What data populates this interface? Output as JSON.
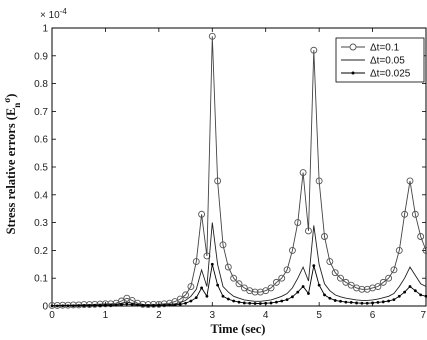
{
  "chart_data": {
    "type": "line",
    "xlabel": "Time (sec)",
    "ylabel": "Stress relative errors (E",
    "ylabel_sub": "n",
    "ylabel_sup": "σ",
    "ylabel_close": ")",
    "y_multiplier": "× 10",
    "y_multiplier_exp": "-4",
    "xlim": [
      0,
      7
    ],
    "ylim": [
      0,
      1
    ],
    "xticks": [
      "0",
      "1",
      "2",
      "3",
      "4",
      "5",
      "6",
      "7"
    ],
    "yticks": [
      "0",
      "0.1",
      "0.2",
      "0.3",
      "0.4",
      "0.5",
      "0.6",
      "0.7",
      "0.8",
      "0.9",
      "1"
    ],
    "grid": false,
    "legend_position": "top-right",
    "series": [
      {
        "name": "Δt=0.1",
        "marker": "circle",
        "x": [
          0.0,
          0.1,
          0.2,
          0.3,
          0.4,
          0.5,
          0.6,
          0.7,
          0.8,
          0.9,
          1.0,
          1.1,
          1.2,
          1.3,
          1.4,
          1.5,
          1.6,
          1.7,
          1.8,
          1.9,
          2.0,
          2.1,
          2.2,
          2.3,
          2.4,
          2.5,
          2.6,
          2.7,
          2.8,
          2.9,
          3.0,
          3.1,
          3.2,
          3.3,
          3.4,
          3.5,
          3.6,
          3.7,
          3.8,
          3.9,
          4.0,
          4.1,
          4.2,
          4.3,
          4.4,
          4.5,
          4.6,
          4.7,
          4.8,
          4.9,
          5.0,
          5.1,
          5.2,
          5.3,
          5.4,
          5.5,
          5.6,
          5.7,
          5.8,
          5.9,
          6.0,
          6.1,
          6.2,
          6.3,
          6.4,
          6.5,
          6.6,
          6.7,
          6.8,
          6.9,
          7.0
        ],
        "values": [
          0.002,
          0.002,
          0.003,
          0.003,
          0.004,
          0.004,
          0.005,
          0.005,
          0.006,
          0.007,
          0.008,
          0.008,
          0.01,
          0.018,
          0.028,
          0.02,
          0.01,
          0.006,
          0.005,
          0.006,
          0.006,
          0.008,
          0.01,
          0.016,
          0.025,
          0.04,
          0.07,
          0.16,
          0.33,
          0.18,
          0.97,
          0.45,
          0.22,
          0.14,
          0.1,
          0.08,
          0.065,
          0.055,
          0.05,
          0.05,
          0.055,
          0.065,
          0.085,
          0.1,
          0.13,
          0.2,
          0.3,
          0.48,
          0.27,
          0.92,
          0.45,
          0.25,
          0.16,
          0.12,
          0.1,
          0.085,
          0.075,
          0.065,
          0.06,
          0.06,
          0.065,
          0.07,
          0.085,
          0.1,
          0.13,
          0.2,
          0.33,
          0.45,
          0.33,
          0.25,
          0.2
        ]
      },
      {
        "name": "Δt=0.05",
        "marker": "none",
        "x": [
          0.0,
          0.1,
          0.2,
          0.3,
          0.4,
          0.5,
          0.6,
          0.7,
          0.8,
          0.9,
          1.0,
          1.1,
          1.2,
          1.3,
          1.4,
          1.5,
          1.6,
          1.7,
          1.8,
          1.9,
          2.0,
          2.1,
          2.2,
          2.3,
          2.4,
          2.5,
          2.6,
          2.7,
          2.8,
          2.9,
          3.0,
          3.1,
          3.2,
          3.3,
          3.4,
          3.5,
          3.6,
          3.7,
          3.8,
          3.9,
          4.0,
          4.1,
          4.2,
          4.3,
          4.4,
          4.5,
          4.6,
          4.7,
          4.8,
          4.9,
          5.0,
          5.1,
          5.2,
          5.3,
          5.4,
          5.5,
          5.6,
          5.7,
          5.8,
          5.9,
          6.0,
          6.1,
          6.2,
          6.3,
          6.4,
          6.5,
          6.6,
          6.7,
          6.8,
          6.9,
          7.0
        ],
        "values": [
          0.001,
          0.001,
          0.002,
          0.002,
          0.002,
          0.003,
          0.003,
          0.003,
          0.004,
          0.004,
          0.005,
          0.005,
          0.006,
          0.01,
          0.014,
          0.01,
          0.006,
          0.004,
          0.003,
          0.003,
          0.004,
          0.005,
          0.006,
          0.008,
          0.012,
          0.02,
          0.035,
          0.06,
          0.13,
          0.07,
          0.3,
          0.15,
          0.07,
          0.05,
          0.035,
          0.028,
          0.022,
          0.019,
          0.017,
          0.017,
          0.019,
          0.022,
          0.028,
          0.035,
          0.045,
          0.065,
          0.1,
          0.14,
          0.09,
          0.29,
          0.15,
          0.08,
          0.055,
          0.04,
          0.033,
          0.028,
          0.025,
          0.022,
          0.02,
          0.02,
          0.022,
          0.025,
          0.03,
          0.035,
          0.045,
          0.07,
          0.1,
          0.14,
          0.11,
          0.08,
          0.07
        ]
      },
      {
        "name": "Δt=0.025",
        "marker": "dot",
        "x": [
          0.0,
          0.1,
          0.2,
          0.3,
          0.4,
          0.5,
          0.6,
          0.7,
          0.8,
          0.9,
          1.0,
          1.1,
          1.2,
          1.3,
          1.4,
          1.5,
          1.6,
          1.7,
          1.8,
          1.9,
          2.0,
          2.1,
          2.2,
          2.3,
          2.4,
          2.5,
          2.6,
          2.7,
          2.8,
          2.9,
          3.0,
          3.1,
          3.2,
          3.3,
          3.4,
          3.5,
          3.6,
          3.7,
          3.8,
          3.9,
          4.0,
          4.1,
          4.2,
          4.3,
          4.4,
          4.5,
          4.6,
          4.7,
          4.8,
          4.9,
          5.0,
          5.1,
          5.2,
          5.3,
          5.4,
          5.5,
          5.6,
          5.7,
          5.8,
          5.9,
          6.0,
          6.1,
          6.2,
          6.3,
          6.4,
          6.5,
          6.6,
          6.7,
          6.8,
          6.9,
          7.0
        ],
        "values": [
          0.0005,
          0.0005,
          0.001,
          0.001,
          0.001,
          0.0015,
          0.0015,
          0.0015,
          0.002,
          0.002,
          0.0025,
          0.0025,
          0.003,
          0.005,
          0.007,
          0.005,
          0.003,
          0.002,
          0.0015,
          0.0015,
          0.002,
          0.0025,
          0.003,
          0.004,
          0.006,
          0.01,
          0.018,
          0.03,
          0.065,
          0.035,
          0.15,
          0.075,
          0.035,
          0.025,
          0.018,
          0.014,
          0.011,
          0.01,
          0.009,
          0.009,
          0.01,
          0.011,
          0.014,
          0.018,
          0.023,
          0.033,
          0.05,
          0.07,
          0.045,
          0.145,
          0.075,
          0.04,
          0.028,
          0.02,
          0.017,
          0.014,
          0.013,
          0.011,
          0.01,
          0.01,
          0.011,
          0.013,
          0.015,
          0.018,
          0.023,
          0.035,
          0.05,
          0.07,
          0.055,
          0.04,
          0.035
        ]
      }
    ]
  }
}
